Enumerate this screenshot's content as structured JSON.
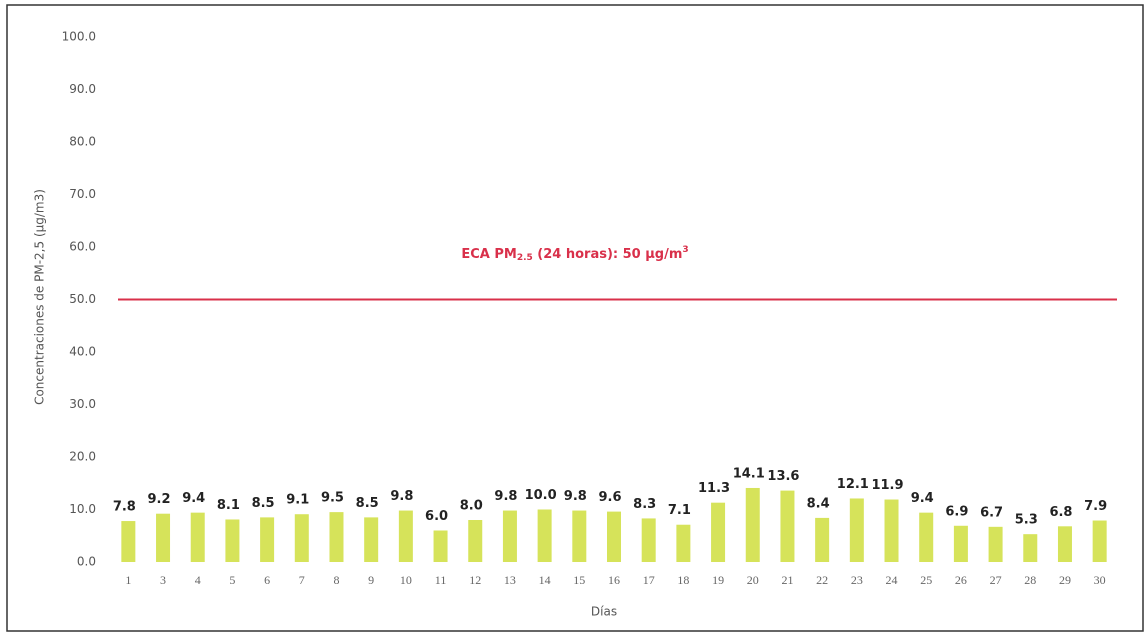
{
  "chart_data": {
    "type": "bar",
    "categories": [
      "1",
      "3",
      "4",
      "5",
      "6",
      "7",
      "8",
      "9",
      "10",
      "11",
      "12",
      "13",
      "14",
      "15",
      "16",
      "17",
      "18",
      "19",
      "20",
      "21",
      "22",
      "23",
      "24",
      "25",
      "26",
      "27",
      "28",
      "29",
      "30"
    ],
    "values": [
      7.8,
      9.2,
      9.4,
      8.1,
      8.5,
      9.1,
      9.5,
      8.5,
      9.8,
      6.0,
      8.0,
      9.8,
      10.0,
      9.8,
      9.6,
      8.3,
      7.1,
      11.3,
      14.1,
      13.6,
      8.4,
      12.1,
      11.9,
      9.4,
      6.9,
      6.7,
      5.3,
      6.8,
      7.9
    ],
    "value_labels": [
      "7.8",
      "9.2",
      "9.4",
      "8.1",
      "8.5",
      "9.1",
      "9.5",
      "8.5",
      "9.8",
      "6.0",
      "8.0",
      "9.8",
      "10.0",
      "9.8",
      "9.6",
      "8.3",
      "7.1",
      "11.3",
      "14.1",
      "13.6",
      "8.4",
      "12.1",
      "11.9",
      "9.4",
      "6.9",
      "6.7",
      "5.3",
      "6.8",
      "7.9"
    ],
    "color": "#d6e35a",
    "ylim": [
      0,
      100
    ],
    "yticks": [
      {
        "value": 0,
        "label": "0.0"
      },
      {
        "value": 10,
        "label": "10.0"
      },
      {
        "value": 20,
        "label": "20.0"
      },
      {
        "value": 30,
        "label": "30.0"
      },
      {
        "value": 40,
        "label": "40.0"
      },
      {
        "value": 50,
        "label": "50.0"
      },
      {
        "value": 60,
        "label": "60.0"
      },
      {
        "value": 70,
        "label": "70.0"
      },
      {
        "value": 80,
        "label": "80.0"
      },
      {
        "value": 90,
        "label": "90.0"
      },
      {
        "value": 100,
        "label": "100.0"
      }
    ],
    "grid": false,
    "y_label": "Concentraciones de PM-2,5 (µg/m3)",
    "x_label": "Días",
    "reference_line": {
      "value": 50,
      "color": "#d9304a"
    },
    "annotation": {
      "prefix": "ECA PM",
      "sub": "2.5",
      "middle": " (24 horas): 50 µg/m",
      "sup": "3"
    }
  }
}
